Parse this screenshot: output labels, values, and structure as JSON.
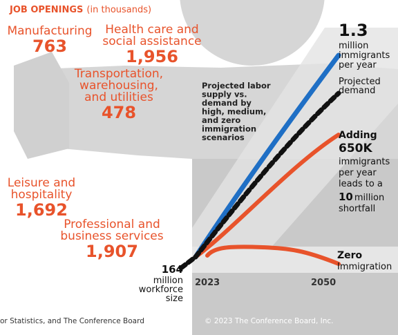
{
  "header": {
    "title": "JOB OPENINGS",
    "subtitle": "(in thousands)"
  },
  "openings": [
    {
      "lines": [
        "Manufacturing"
      ],
      "value": "763"
    },
    {
      "lines": [
        "Health care and",
        "social assistance"
      ],
      "value": "1,956"
    },
    {
      "lines": [
        "Transportation,",
        "warehousing,",
        "and utilities"
      ],
      "value": "478"
    },
    {
      "lines": [
        "Leisure and",
        "hospitality"
      ],
      "value": "1,692"
    },
    {
      "lines": [
        "Professional and",
        "business services"
      ],
      "value": "1,907"
    }
  ],
  "chart": {
    "note": [
      "Projected labor",
      "supply vs.",
      "demand by",
      "high, medium,",
      "and zero",
      "immigration",
      "scenarios"
    ],
    "high": {
      "value": "1.3",
      "lines": [
        "million",
        "immigrants",
        "per year"
      ]
    },
    "demand": [
      "Projected",
      "demand"
    ],
    "medium": {
      "lead": "Adding",
      "value": "650K",
      "lines": [
        "immigrants",
        "per year",
        "leads to a"
      ],
      "shortfall_value": "10",
      "shortfall_unit": "million",
      "shortfall_label": "shortfall"
    },
    "zero": {
      "lines": [
        "Zero",
        "Immigration"
      ]
    },
    "start": {
      "value": "164",
      "lines": [
        "million",
        "workforce",
        "size"
      ]
    },
    "xticks": [
      "2023",
      "2050"
    ]
  },
  "footer": {
    "source": "or Statistics, and The Conference Board",
    "copyright": "© 2023 The Conference Board, Inc."
  }
}
